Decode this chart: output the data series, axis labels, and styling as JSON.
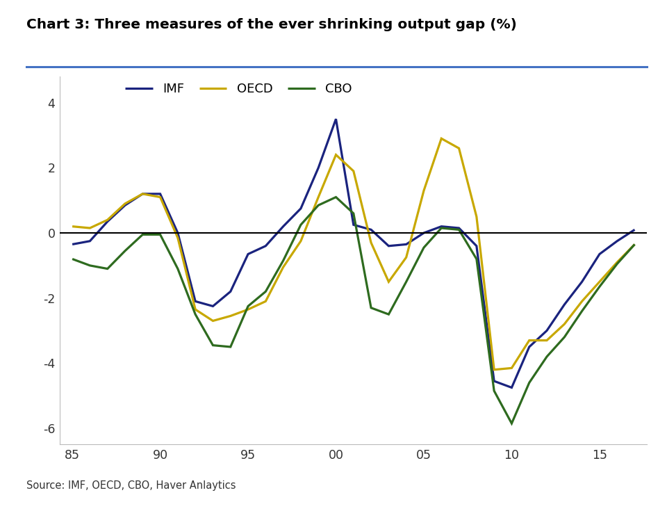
{
  "title": "Chart 3: Three measures of the ever shrinking output gap (%)",
  "source": "Source: IMF, OECD, CBO, Haver Anlaytics",
  "background_color": "#ffffff",
  "title_color": "#000000",
  "series": {
    "IMF": {
      "color": "#1a237e",
      "linewidth": 2.3,
      "years": [
        1985,
        1986,
        1987,
        1988,
        1989,
        1990,
        1991,
        1992,
        1993,
        1994,
        1995,
        1996,
        1997,
        1998,
        1999,
        2000,
        2001,
        2002,
        2003,
        2004,
        2005,
        2006,
        2007,
        2008,
        2009,
        2010,
        2011,
        2012,
        2013,
        2014,
        2015,
        2016,
        2017
      ],
      "values": [
        -0.35,
        -0.25,
        0.35,
        0.85,
        1.2,
        1.2,
        0.0,
        -2.1,
        -2.25,
        -1.8,
        -0.65,
        -0.4,
        0.2,
        0.75,
        2.0,
        3.5,
        0.25,
        0.1,
        -0.4,
        -0.35,
        0.0,
        0.2,
        0.15,
        -0.4,
        -4.55,
        -4.75,
        -3.5,
        -3.0,
        -2.2,
        -1.5,
        -0.65,
        -0.25,
        0.1
      ]
    },
    "OECD": {
      "color": "#c8a800",
      "linewidth": 2.3,
      "years": [
        1985,
        1986,
        1987,
        1988,
        1989,
        1990,
        1991,
        1992,
        1993,
        1994,
        1995,
        1996,
        1997,
        1998,
        1999,
        2000,
        2001,
        2002,
        2003,
        2004,
        2005,
        2006,
        2007,
        2008,
        2009,
        2010,
        2011,
        2012,
        2013,
        2014,
        2015,
        2016,
        2017
      ],
      "values": [
        0.2,
        0.15,
        0.4,
        0.9,
        1.2,
        1.1,
        -0.15,
        -2.35,
        -2.7,
        -2.55,
        -2.35,
        -2.1,
        -1.05,
        -0.25,
        1.1,
        2.4,
        1.9,
        -0.3,
        -1.5,
        -0.75,
        1.3,
        2.9,
        2.6,
        0.5,
        -4.2,
        -4.15,
        -3.3,
        -3.3,
        -2.8,
        -2.1,
        -1.5,
        -0.9,
        -0.35
      ]
    },
    "CBO": {
      "color": "#2e6b1f",
      "linewidth": 2.3,
      "years": [
        1985,
        1986,
        1987,
        1988,
        1989,
        1990,
        1991,
        1992,
        1993,
        1994,
        1995,
        1996,
        1997,
        1998,
        1999,
        2000,
        2001,
        2002,
        2003,
        2004,
        2005,
        2006,
        2007,
        2008,
        2009,
        2010,
        2011,
        2012,
        2013,
        2014,
        2015,
        2016,
        2017
      ],
      "values": [
        -0.8,
        -1.0,
        -1.1,
        -0.55,
        -0.05,
        -0.05,
        -1.1,
        -2.5,
        -3.45,
        -3.5,
        -2.25,
        -1.8,
        -0.85,
        0.25,
        0.85,
        1.1,
        0.6,
        -2.3,
        -2.5,
        -1.5,
        -0.45,
        0.15,
        0.1,
        -0.8,
        -4.85,
        -5.85,
        -4.6,
        -3.8,
        -3.2,
        -2.4,
        -1.65,
        -0.95,
        -0.35
      ]
    }
  },
  "xlim": [
    1984.3,
    2017.7
  ],
  "ylim": [
    -6.5,
    4.8
  ],
  "yticks": [
    -6,
    -4,
    -2,
    0,
    2,
    4
  ],
  "xticks": [
    1985,
    1990,
    1995,
    2000,
    2005,
    2010,
    2015
  ],
  "xticklabels": [
    "85",
    "90",
    "95",
    "00",
    "05",
    "10",
    "15"
  ],
  "title_line_color": "#4472c4",
  "grid_color": "#e0e0e0"
}
